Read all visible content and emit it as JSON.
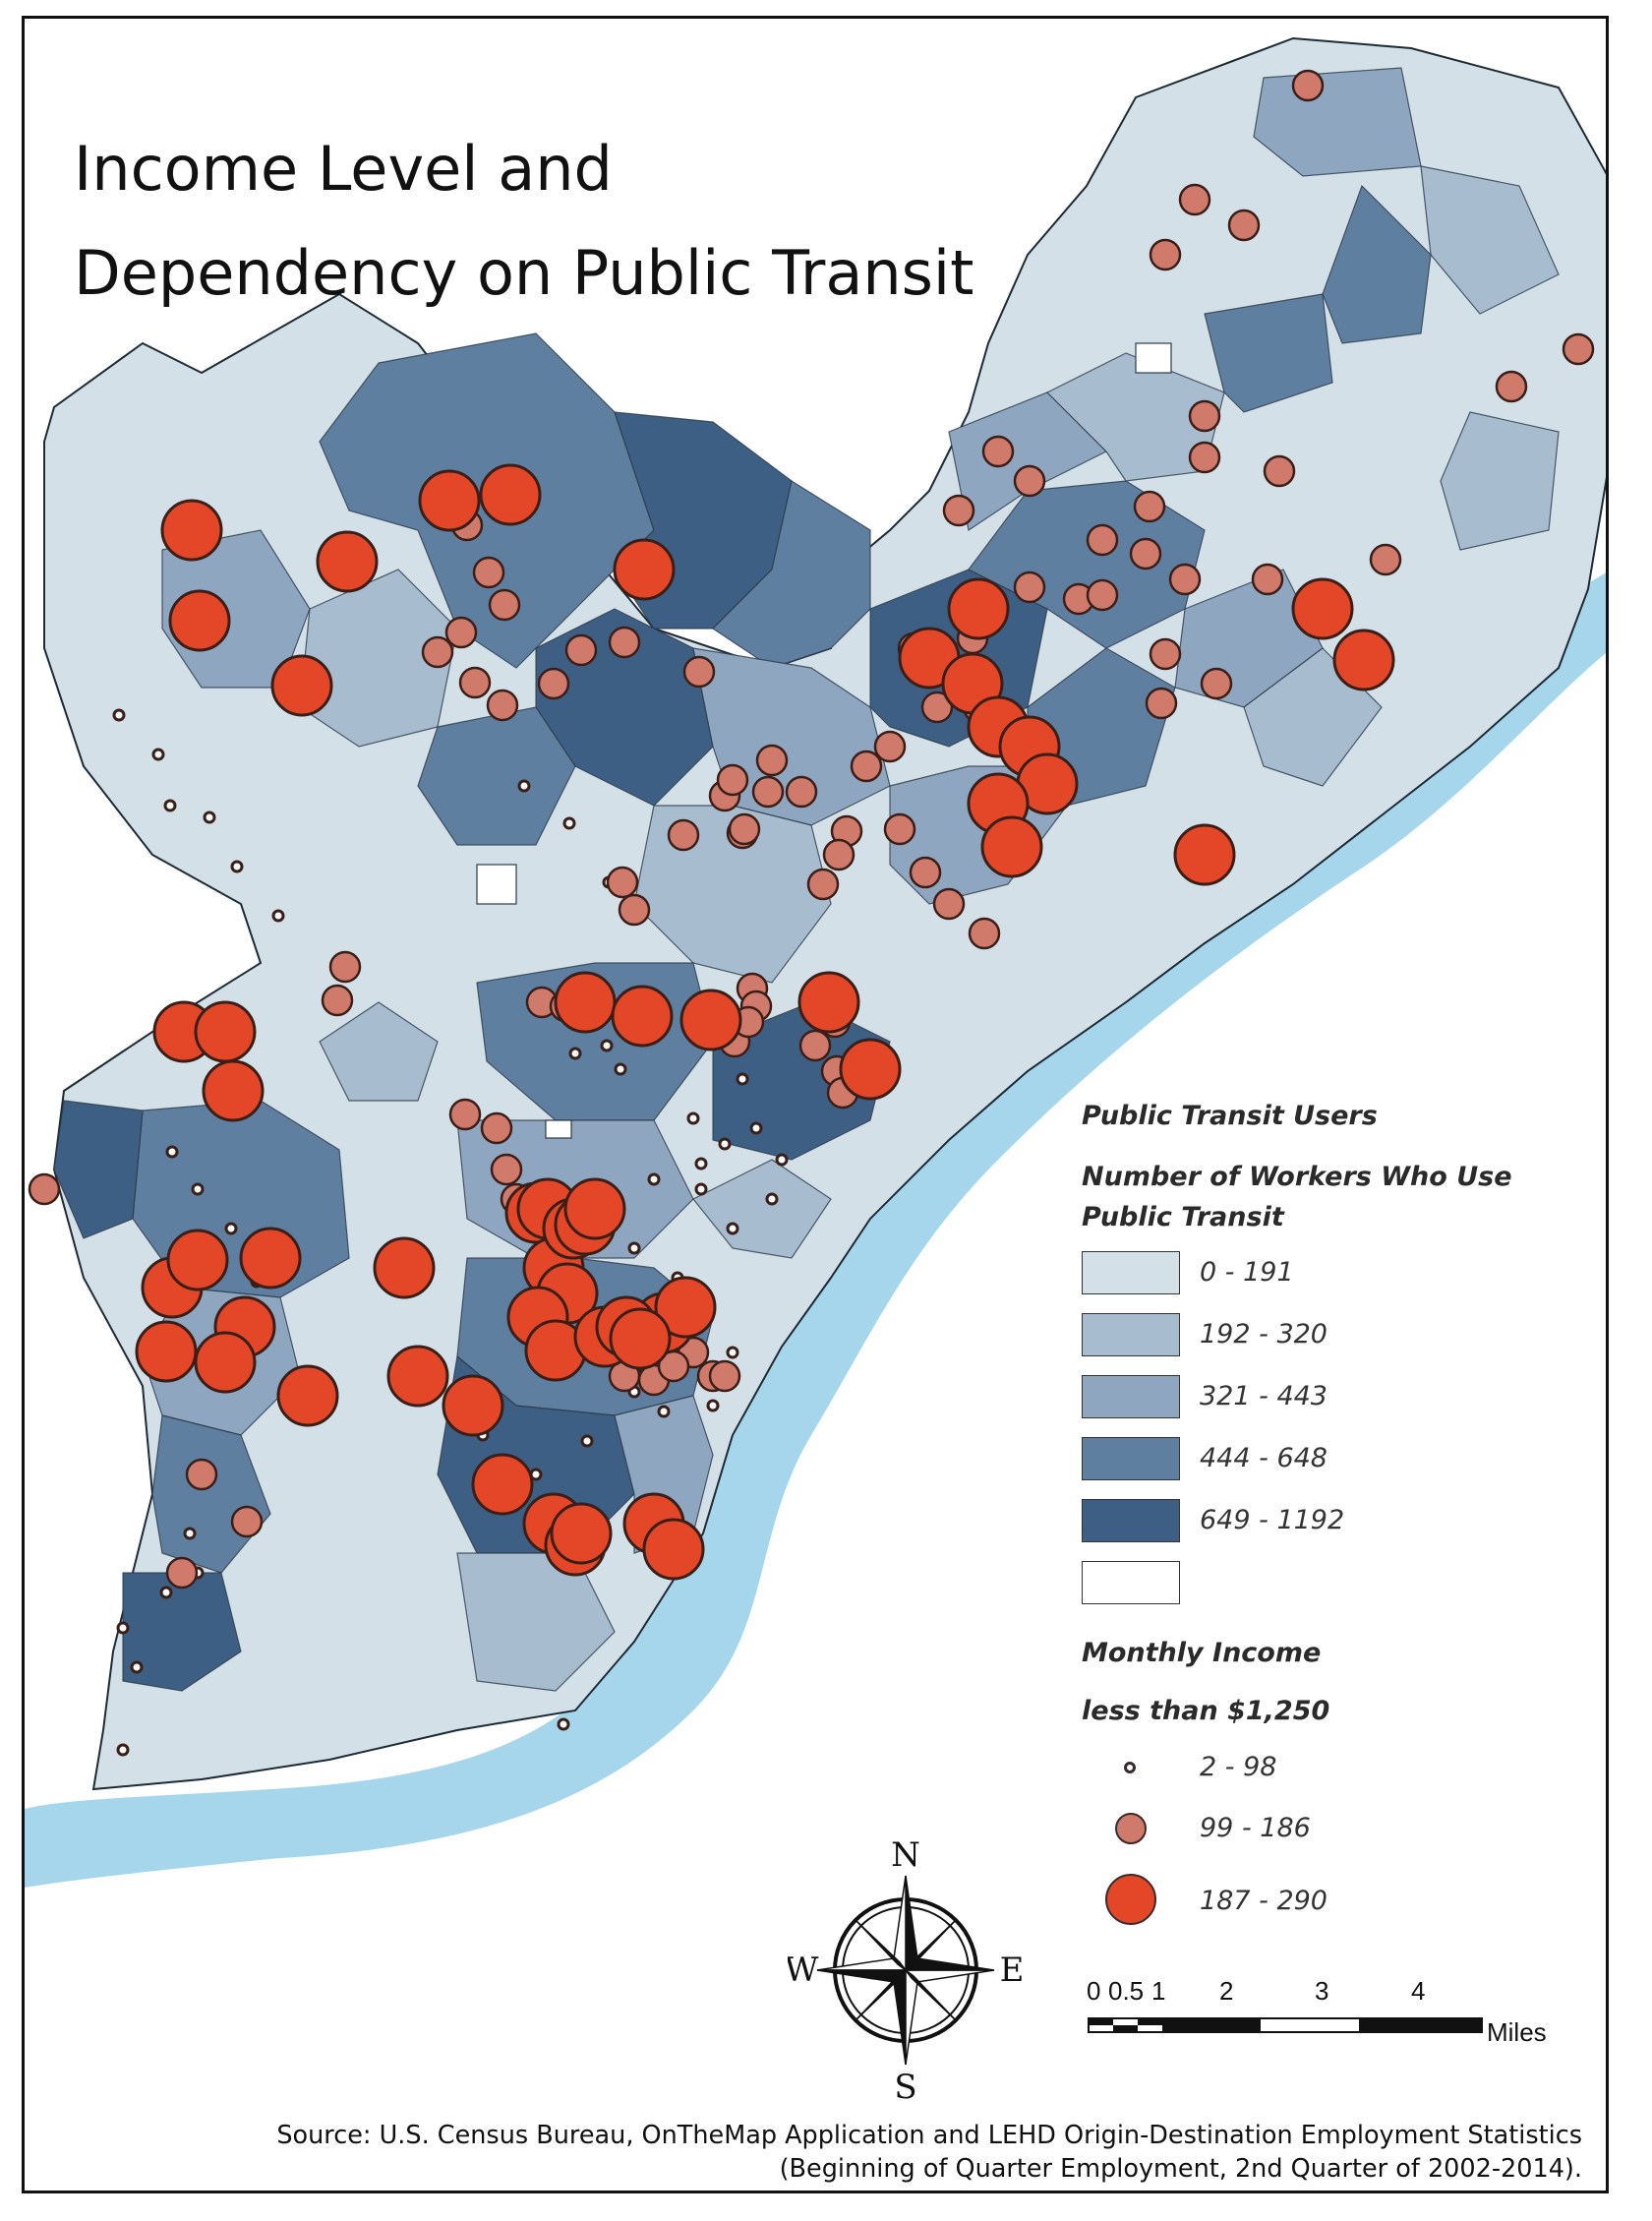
{
  "title": {
    "line1": "Income Level and",
    "line2": "Dependency on Public Transit"
  },
  "legend": {
    "heading": "Public Transit Users",
    "subheading1": "Number of Workers Who Use",
    "subheading2": "Public Transit",
    "classes": [
      {
        "label": "0 - 191",
        "color": "#d4e0e7"
      },
      {
        "label": "192 - 320",
        "color": "#a7bcce"
      },
      {
        "label": "321 - 443",
        "color": "#8ea6bf"
      },
      {
        "label": "444 - 648",
        "color": "#5f7fa1"
      },
      {
        "label": "649 - 1192",
        "color": "#3e5f84"
      },
      {
        "label": "",
        "color": "#ffffff"
      }
    ],
    "income_heading1": "Monthly Income",
    "income_heading2": "less than $1,250",
    "circles": [
      {
        "label": "2 - 98",
        "color": "#ffffff"
      },
      {
        "label": "99 - 186",
        "color": "#d07a6b"
      },
      {
        "label": "187 - 290",
        "color": "#e44727"
      }
    ]
  },
  "compass": {
    "n": "N",
    "s": "S",
    "e": "E",
    "w": "W"
  },
  "scale": {
    "ticks": [
      "0",
      "0.5",
      "1",
      "2",
      "3",
      "4"
    ],
    "unit": "Miles"
  },
  "source": {
    "line1": "Source: U.S. Census Bureau, OnTheMap Application and LEHD Origin-Destination Employment Statistics",
    "line2": "(Beginning of Quarter Employment, 2nd Quarter of 2002-2014)."
  },
  "colors": {
    "water": "#a6d6ec",
    "land_border": "#222222",
    "small_dot": "#ffffff",
    "medium_dot": "#d07a6b",
    "large_dot": "#e44727"
  }
}
